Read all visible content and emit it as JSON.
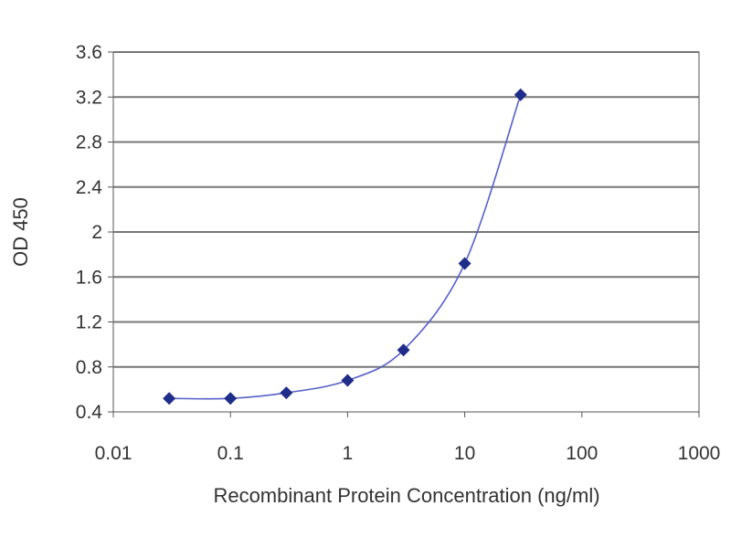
{
  "chart_data": {
    "type": "line",
    "title": "",
    "xlabel": "Recombinant Protein Concentration (ng/ml)",
    "ylabel": "OD 450",
    "x_scale": "log",
    "xlim": [
      0.01,
      1000
    ],
    "ylim": [
      0.4,
      3.6
    ],
    "x_ticks": [
      "0.01",
      "0.1",
      "1",
      "10",
      "100",
      "1000"
    ],
    "y_ticks": [
      "0.4",
      "0.8",
      "1.2",
      "1.6",
      "2",
      "2.4",
      "2.8",
      "3.2",
      "3.6"
    ],
    "grid": "horizontal",
    "legend": "none",
    "series": [
      {
        "color": "#1f2d8a",
        "x": [
          0.03,
          0.1,
          0.3,
          1,
          3,
          10,
          30
        ],
        "y": [
          0.52,
          0.52,
          0.57,
          0.68,
          0.95,
          1.72,
          3.22
        ]
      }
    ]
  }
}
